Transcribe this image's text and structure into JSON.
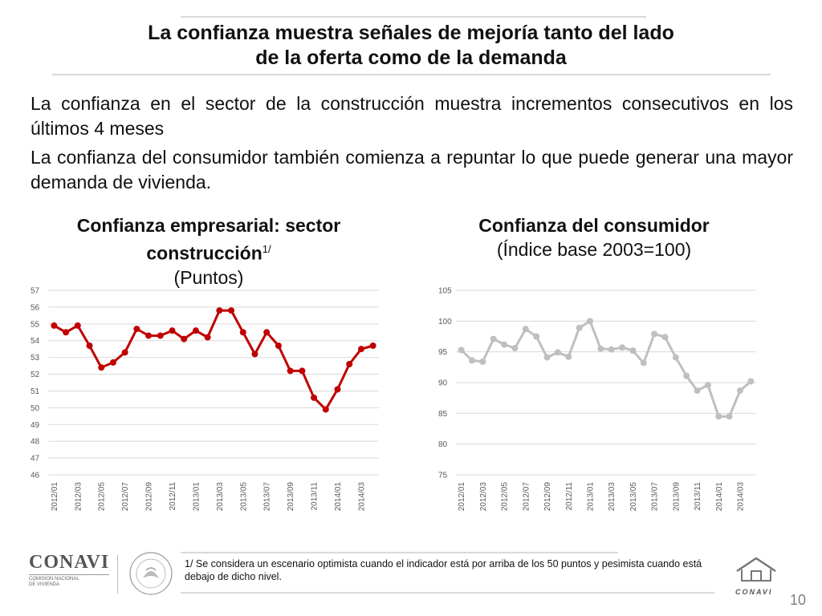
{
  "slide": {
    "title": "La confianza muestra señales de mejoría tanto del lado\nde la oferta como de la demanda",
    "bullets": [
      "La confianza en el sector de la construcción muestra incrementos consecutivos en los últimos 4 meses",
      "La confianza del consumidor también comienza a repuntar lo que puede generar una mayor demanda de vivienda."
    ],
    "footnote": "1/ Se considera un escenario optimista cuando el indicador está por arriba de los 50 puntos y pesimista cuando está debajo de dicho nivel.",
    "page_number": "10",
    "logo_left": {
      "name": "CONAVI",
      "subtitle": "COMISIÓN NACIONAL\nDE VIVIENDA"
    },
    "logo_right": {
      "name": "CONAVI"
    }
  },
  "chart_titles": [
    {
      "line1": "Confianza empresarial: sector",
      "line2": "construcción",
      "sup": "1/",
      "line3": "(Puntos)"
    },
    {
      "line1": "Confianza del consumidor",
      "line2": "(Índice base 2003=100)"
    }
  ],
  "chart_data": [
    {
      "type": "line",
      "title": "Confianza empresarial: sector construcción1/ (Puntos)",
      "xlabel": "",
      "ylabel": "",
      "ylim": [
        46,
        57
      ],
      "yticks": [
        46,
        47,
        48,
        49,
        50,
        51,
        52,
        53,
        54,
        55,
        56,
        57
      ],
      "grid": true,
      "color": "#c00000",
      "x_tick_labels": [
        "2012/01",
        "2012/03",
        "2012/05",
        "2012/07",
        "2012/09",
        "2012/11",
        "2013/01",
        "2013/03",
        "2013/05",
        "2013/07",
        "2013/09",
        "2013/11",
        "2014/01",
        "2014/03"
      ],
      "x": [
        "2012/01",
        "2012/02",
        "2012/03",
        "2012/04",
        "2012/05",
        "2012/06",
        "2012/07",
        "2012/08",
        "2012/09",
        "2012/10",
        "2012/11",
        "2012/12",
        "2013/01",
        "2013/02",
        "2013/03",
        "2013/04",
        "2013/05",
        "2013/06",
        "2013/07",
        "2013/08",
        "2013/09",
        "2013/10",
        "2013/11",
        "2013/12",
        "2014/01",
        "2014/02",
        "2014/03",
        "2014/04"
      ],
      "values": [
        54.9,
        54.5,
        54.9,
        53.7,
        52.4,
        52.7,
        53.3,
        54.7,
        54.3,
        54.3,
        54.6,
        54.1,
        54.6,
        54.2,
        55.8,
        55.8,
        54.5,
        53.2,
        54.5,
        53.7,
        52.2,
        52.2,
        50.6,
        49.9,
        51.1,
        52.6,
        53.5,
        53.7
      ]
    },
    {
      "type": "line",
      "title": "Confianza del consumidor (Índice base 2003=100)",
      "xlabel": "",
      "ylabel": "",
      "ylim": [
        75,
        105
      ],
      "yticks": [
        75,
        80,
        85,
        90,
        95,
        100,
        105
      ],
      "grid": true,
      "color": "#bfbfbf",
      "x_tick_labels": [
        "2012/01",
        "2012/03",
        "2012/05",
        "2012/07",
        "2012/09",
        "2012/11",
        "2013/01",
        "2013/03",
        "2013/05",
        "2013/07",
        "2013/09",
        "2013/11",
        "2014/01",
        "2014/03"
      ],
      "x": [
        "2012/01",
        "2012/02",
        "2012/03",
        "2012/04",
        "2012/05",
        "2012/06",
        "2012/07",
        "2012/08",
        "2012/09",
        "2012/10",
        "2012/11",
        "2012/12",
        "2013/01",
        "2013/02",
        "2013/03",
        "2013/04",
        "2013/05",
        "2013/06",
        "2013/07",
        "2013/08",
        "2013/09",
        "2013/10",
        "2013/11",
        "2013/12",
        "2014/01",
        "2014/02",
        "2014/03",
        "2014/04"
      ],
      "values": [
        95.3,
        93.6,
        93.4,
        97.1,
        96.2,
        95.6,
        98.7,
        97.5,
        94.1,
        94.9,
        94.2,
        98.9,
        100.0,
        95.5,
        95.4,
        95.7,
        95.2,
        93.2,
        97.9,
        97.4,
        94.1,
        91.1,
        88.7,
        89.6,
        84.5,
        84.5,
        88.7,
        90.2
      ]
    }
  ]
}
